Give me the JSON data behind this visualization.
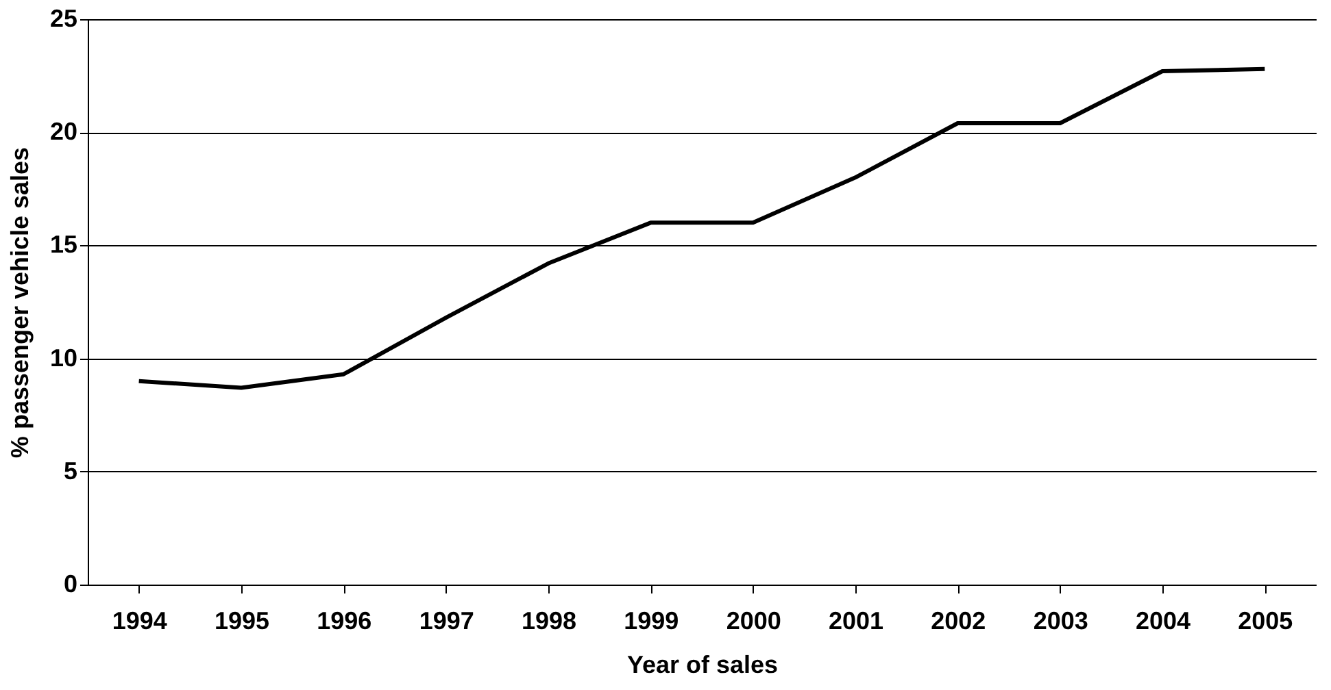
{
  "chart_data": {
    "type": "line",
    "xlabel": "Year of sales",
    "ylabel": "% passenger vehicle sales",
    "categories": [
      "1994",
      "1995",
      "1996",
      "1997",
      "1998",
      "1999",
      "2000",
      "2001",
      "2002",
      "2003",
      "2004",
      "2005"
    ],
    "series": [
      {
        "color": "#000000",
        "values": [
          9.0,
          8.7,
          9.3,
          11.8,
          14.2,
          16.0,
          16.0,
          18.0,
          20.4,
          20.4,
          22.7,
          22.8
        ]
      }
    ],
    "ylim": [
      0,
      25
    ],
    "yticks": [
      0,
      5,
      10,
      15,
      20,
      25
    ],
    "grid": "y",
    "marker": "none",
    "line_style": "solid"
  }
}
